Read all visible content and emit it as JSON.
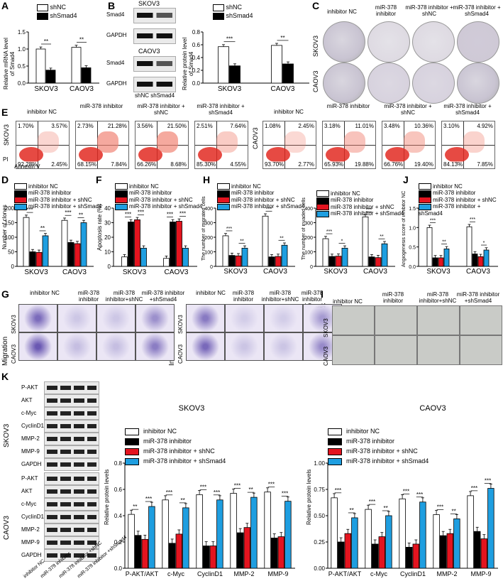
{
  "colors": {
    "nc": "#ffffff",
    "black": "#000000",
    "red": "#e3141f",
    "blue": "#1e9ee0"
  },
  "panels": {
    "A": "A",
    "B": "B",
    "C": "C",
    "D": "D",
    "E": "E",
    "F": "F",
    "G": "G",
    "H": "H",
    "I": "I",
    "J": "J",
    "K": "K"
  },
  "panelA": {
    "ylabel": "Relative mRNA level of Smad4",
    "legend": [
      "shNC",
      "shSmad4"
    ]
  },
  "panelB": {
    "cells": [
      "SKOV3",
      "CAOV3"
    ],
    "bands": [
      "Smad4",
      "GAPDH",
      "Smad4",
      "GAPDH"
    ],
    "lanes": [
      "shNC",
      "shSmad4"
    ],
    "ylabel": "Relative protein level of Smad4",
    "legend": [
      "shNC",
      "shSmad4"
    ]
  },
  "panelC": {
    "columns": [
      "inhibitor NC",
      "miR-378 inhibitor",
      "miR-378 inhibitor + shNC",
      "miR-378 inhibitor + shSmad4"
    ],
    "rows": [
      "SKOV3",
      "CAOV3"
    ]
  },
  "panelE": {
    "sk_headers": [
      "inhibitor NC",
      "miR-378 inhibitor",
      "miR-378 inhibitor + shNC",
      "miR-378 inhibitor + shSmad4"
    ],
    "ca_headers": [
      "inhibitor NC",
      "miR-378 inhibitor",
      "miR-378 inhibitor + shNC",
      "miR-378 inhibitor + shSmad4"
    ],
    "row_sk": "SKOV3",
    "row_ca": "CAOV3",
    "axis_y": "PI",
    "axis_x": "Annexin V",
    "sk_quads": [
      [
        "1.70%",
        "3.57%",
        "92.28%",
        "2.45%"
      ],
      [
        "2.73%",
        "21.28%",
        "68.15%",
        "7.84%"
      ],
      [
        "3.56%",
        "21.50%",
        "66.26%",
        "8.68%"
      ],
      [
        "2.51%",
        "7.64%",
        "85.30%",
        "4.55%"
      ]
    ],
    "ca_quads": [
      [
        "1.08%",
        "2.45%",
        "93.70%",
        "2.77%"
      ],
      [
        "3.18%",
        "11.01%",
        "65.93%",
        "19.88%"
      ],
      [
        "3.48%",
        "10.36%",
        "66.76%",
        "19.40%"
      ],
      [
        "3.10%",
        "4.92%",
        "84.13%",
        "7.85%"
      ]
    ]
  },
  "legend4": [
    "inhibitor NC",
    "miR-378 inhibitor",
    "miR-378 inhibitor + shNC",
    "miR-378 inhibitor + shSmad4"
  ],
  "panelD": {
    "ylabel": "Number of clones"
  },
  "panelF": {
    "ylabel": "Apoptosis rate (%)"
  },
  "panelH": {
    "ylabel1": "The number of migrated cells",
    "ylabel2": "The number of invaded cells"
  },
  "panelJ": {
    "ylabel": "Angiogenesis score of inhibitor NC"
  },
  "panelG": {
    "columns": [
      "inhibitor NC",
      "miR-378 inhibitor",
      "miR-378 inhibitor+shNC",
      "miR-378 inhibitor +shSmad4"
    ],
    "left": "Migration",
    "right": "Invasion",
    "rows": [
      "SKOV3",
      "CAOV3"
    ]
  },
  "panelI": {
    "columns": [
      "inhibitor NC",
      "miR-378 inhibitor",
      "miR-378 inhibitor+shNC",
      "miR-378 inhibitor +shSmad4"
    ],
    "rows": [
      "SKOV3",
      "CAOV3"
    ]
  },
  "panelK": {
    "bands": [
      "P-AKT",
      "AKT",
      "c-Myc",
      "CyclinD1",
      "MMP-2",
      "MMP-9",
      "GAPDH"
    ],
    "cells": [
      "SKOV3",
      "CAOV3"
    ],
    "lanes": [
      "inhibitor NC",
      "miR-378 inhibitor",
      "miR-378 inhibitor +shNC",
      "miR-378 inhibitor +shSmad4"
    ],
    "ylabel": "Relative protein levels"
  },
  "chart_data": [
    {
      "type": "bar",
      "panel": "A",
      "categories": [
        "SKOV3",
        "CAOV3"
      ],
      "series": [
        {
          "name": "shNC",
          "values": [
            1.0,
            1.05
          ]
        },
        {
          "name": "shSmad4",
          "values": [
            0.38,
            0.45
          ]
        }
      ],
      "ylim": [
        0,
        1.5
      ],
      "yticks": [
        "0.0",
        "0.5",
        "1.0",
        "1.5"
      ],
      "annotations": [
        "**",
        "**"
      ]
    },
    {
      "type": "bar",
      "panel": "B",
      "categories": [
        "SKOV3",
        "CAOV3"
      ],
      "series": [
        {
          "name": "shNC",
          "values": [
            0.57,
            0.59
          ]
        },
        {
          "name": "shSmad4",
          "values": [
            0.27,
            0.3
          ]
        }
      ],
      "ylim": [
        0,
        0.8
      ],
      "yticks": [
        "0.0",
        "0.2",
        "0.4",
        "0.6",
        "0.8"
      ],
      "annotations": [
        "***",
        "**"
      ]
    },
    {
      "type": "bar",
      "panel": "D",
      "categories": [
        "SKOV3",
        "CAOV3"
      ],
      "series": [
        {
          "name": "inhibitor NC",
          "values": [
            168,
            158
          ]
        },
        {
          "name": "miR-378 inhibitor",
          "values": [
            50,
            82
          ]
        },
        {
          "name": "miR-378 inhibitor + shNC",
          "values": [
            48,
            78
          ]
        },
        {
          "name": "miR-378 inhibitor + shSmad4",
          "values": [
            105,
            150
          ]
        }
      ],
      "ylim": [
        0,
        200
      ],
      "yticks": [
        "0",
        "50",
        "100",
        "150",
        "200"
      ],
      "annotations": [
        "***",
        "**",
        "***",
        "**"
      ]
    },
    {
      "type": "bar",
      "panel": "F",
      "categories": [
        "SKOV3",
        "CAOV3"
      ],
      "series": [
        {
          "name": "inhibitor NC",
          "values": [
            6.5,
            5.5
          ]
        },
        {
          "name": "miR-378 inhibitor",
          "values": [
            30.5,
            30.5
          ]
        },
        {
          "name": "miR-378 inhibitor + shNC",
          "values": [
            32,
            31
          ]
        },
        {
          "name": "miR-378 inhibitor + shSmad4",
          "values": [
            12.5,
            12.5
          ]
        }
      ],
      "ylim": [
        0,
        40
      ],
      "yticks": [
        "0",
        "10",
        "20",
        "30",
        "40"
      ],
      "annotations": [
        "***",
        "***",
        "***",
        "***"
      ]
    },
    {
      "type": "bar",
      "panel": "H-migration",
      "categories": [
        "SKOV3",
        "CAOV3"
      ],
      "series": [
        {
          "name": "inhibitor NC",
          "values": [
            210,
            345
          ]
        },
        {
          "name": "miR-378 inhibitor",
          "values": [
            75,
            65
          ]
        },
        {
          "name": "miR-378 inhibitor + shNC",
          "values": [
            72,
            68
          ]
        },
        {
          "name": "miR-378 inhibitor + shSmad4",
          "values": [
            125,
            145
          ]
        }
      ],
      "ylim": [
        0,
        400
      ],
      "yticks": [
        "0",
        "100",
        "200",
        "300",
        "400"
      ],
      "annotations": [
        "***",
        "**",
        "***",
        "**"
      ]
    },
    {
      "type": "bar",
      "panel": "H-invasion",
      "categories": [
        "SKOV3",
        "CAOV3"
      ],
      "series": [
        {
          "name": "inhibitor NC",
          "values": [
            190,
            340
          ]
        },
        {
          "name": "miR-378 inhibitor",
          "values": [
            68,
            65
          ]
        },
        {
          "name": "miR-378 inhibitor + shNC",
          "values": [
            70,
            60
          ]
        },
        {
          "name": "miR-378 inhibitor + shSmad4",
          "values": [
            125,
            155
          ]
        }
      ],
      "ylim": [
        0,
        400
      ],
      "yticks": [
        "0",
        "100",
        "200",
        "300",
        "400"
      ],
      "annotations": [
        "***",
        "*",
        "***",
        "**"
      ]
    },
    {
      "type": "bar",
      "panel": "J",
      "categories": [
        "SKOV3",
        "CAOV3"
      ],
      "series": [
        {
          "name": "inhibitor NC",
          "values": [
            1.0,
            1.02
          ]
        },
        {
          "name": "miR-378 inhibitor",
          "values": [
            0.22,
            0.32
          ]
        },
        {
          "name": "miR-378 inhibitor + shNC",
          "values": [
            0.22,
            0.25
          ]
        },
        {
          "name": "miR-378 inhibitor + shSmad4",
          "values": [
            0.45,
            0.42
          ]
        }
      ],
      "ylim": [
        0,
        1.5
      ],
      "yticks": [
        "0.0",
        "0.5",
        "1.0",
        "1.5"
      ],
      "annotations": [
        "***",
        "**",
        "***",
        "*"
      ]
    },
    {
      "type": "bar",
      "panel": "K-SKOV3",
      "title": "SKOV3",
      "categories": [
        "P-AKT/AKT",
        "c-Myc",
        "CyclinD1",
        "MMP-2",
        "MMP-9"
      ],
      "series": [
        {
          "name": "inhibitor NC",
          "values": [
            0.41,
            0.52,
            0.56,
            0.57,
            0.58
          ]
        },
        {
          "name": "miR-378 inhibitor",
          "values": [
            0.25,
            0.19,
            0.17,
            0.27,
            0.23
          ]
        },
        {
          "name": "miR-378 inhibitor + shNC",
          "values": [
            0.22,
            0.26,
            0.17,
            0.31,
            0.24
          ]
        },
        {
          "name": "miR-378 inhibitor + shSmad4",
          "values": [
            0.47,
            0.46,
            0.52,
            0.54,
            0.51
          ]
        }
      ],
      "ylim": [
        0,
        0.8
      ],
      "yticks": [
        "0.0",
        "0.2",
        "0.4",
        "0.6",
        "0.8"
      ],
      "annotations": [
        "**",
        "***",
        "***",
        "**",
        "***",
        "***",
        "***",
        "**",
        "***",
        "***"
      ]
    },
    {
      "type": "bar",
      "panel": "K-CAOV3",
      "title": "CAOV3",
      "categories": [
        "P-AKT/AKT",
        "c-Myc",
        "CyclinD1",
        "MMP-2",
        "MMP-9"
      ],
      "series": [
        {
          "name": "inhibitor NC",
          "values": [
            0.67,
            0.56,
            0.66,
            0.51,
            0.69
          ]
        },
        {
          "name": "miR-378 inhibitor",
          "values": [
            0.25,
            0.23,
            0.2,
            0.31,
            0.35
          ]
        },
        {
          "name": "miR-378 inhibitor + shNC",
          "values": [
            0.33,
            0.3,
            0.23,
            0.33,
            0.28
          ]
        },
        {
          "name": "miR-378 inhibitor + shSmad4",
          "values": [
            0.48,
            0.5,
            0.63,
            0.47,
            0.76
          ]
        }
      ],
      "ylim": [
        0,
        1.0
      ],
      "yticks": [
        "0.00",
        "0.25",
        "0.50",
        "0.75",
        "1.00"
      ],
      "annotations": [
        "***",
        "**",
        "***",
        "**",
        "***",
        "***",
        "***",
        "**",
        "***",
        "***"
      ]
    }
  ]
}
